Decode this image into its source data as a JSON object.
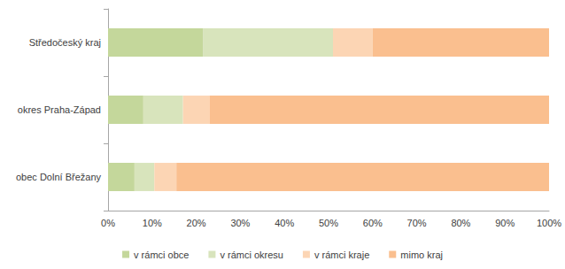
{
  "chart_data": {
    "type": "bar",
    "orientation": "horizontal",
    "stacked": true,
    "grid": false,
    "legend": "bottom",
    "categories": [
      "Středočeský kraj",
      "okres Praha-Západ",
      "obec Dolní Břežany"
    ],
    "series": [
      {
        "name": "v rámci obce",
        "color": "#c4d79b",
        "values": [
          21.5,
          8,
          6
        ]
      },
      {
        "name": "v rámci okresu",
        "color": "#d8e4bc",
        "values": [
          29.5,
          9,
          4.5
        ]
      },
      {
        "name": "v rámci kraje",
        "color": "#fcd5b4",
        "values": [
          9,
          6,
          5
        ]
      },
      {
        "name": "mimo kraj",
        "color": "#fabf8f",
        "values": [
          40,
          77,
          84.5
        ]
      }
    ],
    "xlim": [
      0,
      100
    ],
    "xticks": [
      {
        "value": 0,
        "label": "0%"
      },
      {
        "value": 10,
        "label": "10%"
      },
      {
        "value": 20,
        "label": "20%"
      },
      {
        "value": 30,
        "label": "30%"
      },
      {
        "value": 40,
        "label": "40%"
      },
      {
        "value": 50,
        "label": "50%"
      },
      {
        "value": 60,
        "label": "60%"
      },
      {
        "value": 70,
        "label": "70%"
      },
      {
        "value": 80,
        "label": "80%"
      },
      {
        "value": 90,
        "label": "90%"
      },
      {
        "value": 100,
        "label": "100%"
      }
    ]
  }
}
